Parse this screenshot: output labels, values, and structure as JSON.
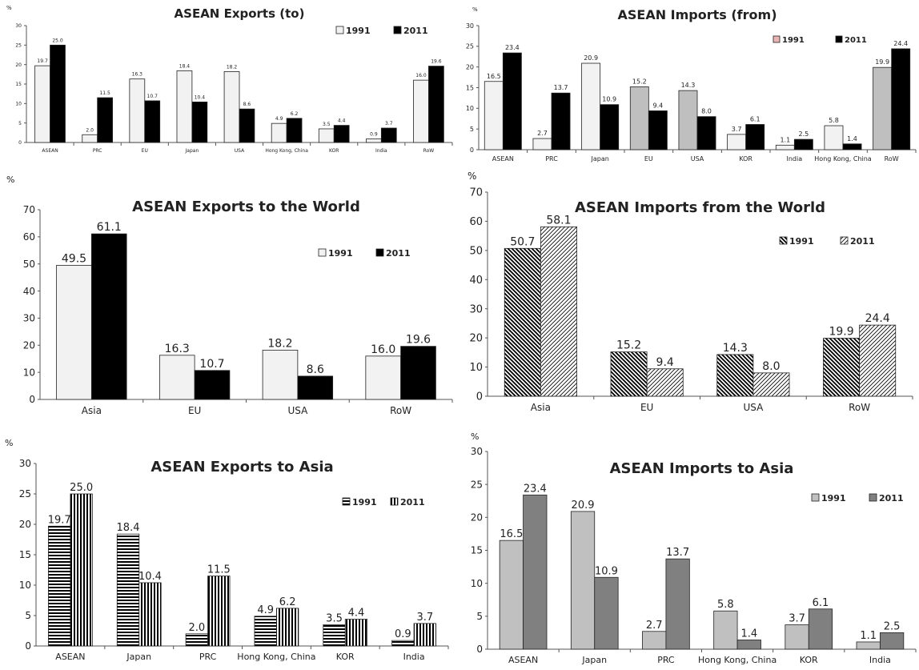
{
  "chart_data": [
    {
      "type": "bar",
      "title": "ASEAN Exports (to)",
      "ylabel": "%",
      "ylim": [
        0,
        30
      ],
      "yticks": [
        0,
        5,
        10,
        15,
        20,
        25,
        30
      ],
      "categories": [
        "ASEAN",
        "PRC",
        "EU",
        "Japan",
        "USA",
        "Hong Kong, China",
        "KOR",
        "India",
        "RoW"
      ],
      "series": [
        {
          "name": "1991",
          "values": [
            19.7,
            2.0,
            16.3,
            18.4,
            18.2,
            4.9,
            3.5,
            0.9,
            16.0
          ],
          "labels": [
            "19.7",
            "2.0",
            "16.3",
            "18.4",
            "18.2",
            "4.9",
            "3.5",
            "0.9",
            "16.0"
          ],
          "color": "#f2f2f2",
          "pattern": "solid"
        },
        {
          "name": "2011",
          "values": [
            25.0,
            11.5,
            10.7,
            10.4,
            8.6,
            6.2,
            4.4,
            3.7,
            19.6
          ],
          "labels": [
            "25.0",
            "11.5",
            "10.7",
            "10.4",
            "8.6",
            "6.2",
            "4.4",
            "3.7",
            "19.6"
          ],
          "color": "#000000",
          "pattern": "solid"
        }
      ],
      "legend": "top-right",
      "grid": false
    },
    {
      "type": "bar",
      "title": "ASEAN Imports (from)",
      "ylabel": "%",
      "ylim": [
        0,
        30
      ],
      "yticks": [
        0,
        5,
        10,
        15,
        20,
        25,
        30
      ],
      "categories": [
        "ASEAN",
        "PRC",
        "Japan",
        "EU",
        "USA",
        "KOR",
        "India",
        "Hong Kong, China",
        "RoW"
      ],
      "series": [
        {
          "name": "1991",
          "values": [
            16.5,
            2.7,
            20.9,
            15.2,
            14.3,
            3.7,
            1.1,
            5.8,
            19.9
          ],
          "labels": [
            "16.5",
            "2.7",
            "20.9",
            "15.2",
            "14.3",
            "3.7",
            "1.1",
            "5.8",
            "19.9"
          ],
          "color": "#f2f2f2",
          "pattern": "solid",
          "legend_color": "#e8b4b4",
          "alt_color": "#bfbfbf",
          "alt_indices": [
            3,
            4,
            8
          ]
        },
        {
          "name": "2011",
          "values": [
            23.4,
            13.7,
            10.9,
            9.4,
            8.0,
            6.1,
            2.5,
            1.4,
            24.4
          ],
          "labels": [
            "23.4",
            "13.7",
            "10.9",
            "9.4",
            "8.0",
            "6.1",
            "2.5",
            "1.4",
            "24.4"
          ],
          "color": "#000000",
          "pattern": "solid"
        }
      ],
      "legend": "top-right",
      "grid": false
    },
    {
      "type": "bar",
      "title": "ASEAN Exports to the World",
      "ylabel": "%",
      "ylim": [
        0,
        70
      ],
      "yticks": [
        0,
        10,
        20,
        30,
        40,
        50,
        60,
        70
      ],
      "categories": [
        "Asia",
        "EU",
        "USA",
        "RoW"
      ],
      "series": [
        {
          "name": "1991",
          "values": [
            49.5,
            16.3,
            18.2,
            16.0
          ],
          "labels": [
            "49.5",
            "16.3",
            "18.2",
            "16.0"
          ],
          "color": "#f2f2f2",
          "pattern": "solid"
        },
        {
          "name": "2011",
          "values": [
            61.1,
            10.7,
            8.6,
            19.6
          ],
          "labels": [
            "61.1",
            "10.7",
            "8.6",
            "19.6"
          ],
          "color": "#000000",
          "pattern": "solid"
        }
      ],
      "legend": "right",
      "grid": false
    },
    {
      "type": "bar",
      "title": "ASEAN Imports from the World",
      "ylabel": "%",
      "ylim": [
        0,
        70
      ],
      "yticks": [
        0,
        10,
        20,
        30,
        40,
        50,
        60,
        70
      ],
      "categories": [
        "Asia",
        "EU",
        "USA",
        "RoW"
      ],
      "series": [
        {
          "name": "1991",
          "values": [
            50.7,
            15.2,
            14.3,
            19.9
          ],
          "labels": [
            "50.7",
            "15.2",
            "14.3",
            "19.9"
          ],
          "color": "#000000",
          "pattern": "hatch-back-dense"
        },
        {
          "name": "2011",
          "values": [
            58.1,
            9.4,
            8.0,
            24.4
          ],
          "labels": [
            "58.1",
            "9.4",
            "8.0",
            "24.4"
          ],
          "color": "#000000",
          "pattern": "hatch-fwd-light"
        }
      ],
      "legend": "right",
      "grid": false
    },
    {
      "type": "bar",
      "title": "ASEAN Exports to Asia",
      "ylabel": "%",
      "ylim": [
        0,
        30
      ],
      "yticks": [
        0,
        5,
        10,
        15,
        20,
        25,
        30
      ],
      "categories": [
        "ASEAN",
        "Japan",
        "PRC",
        "Hong Kong, China",
        "KOR",
        "India"
      ],
      "series": [
        {
          "name": "1991",
          "values": [
            19.7,
            18.4,
            2.0,
            4.9,
            3.5,
            0.9
          ],
          "labels": [
            "19.7",
            "18.4",
            "2.0",
            "4.9",
            "3.5",
            "0.9"
          ],
          "color": "#000000",
          "pattern": "horizontal"
        },
        {
          "name": "2011",
          "values": [
            25.0,
            10.4,
            11.5,
            6.2,
            4.4,
            3.7
          ],
          "labels": [
            "25.0",
            "10.4",
            "11.5",
            "6.2",
            "4.4",
            "3.7"
          ],
          "color": "#000000",
          "pattern": "vertical"
        }
      ],
      "legend": "right",
      "grid": false
    },
    {
      "type": "bar",
      "title": "ASEAN Imports to Asia",
      "ylabel": "%",
      "ylim": [
        0,
        30
      ],
      "yticks": [
        0,
        5,
        10,
        15,
        20,
        25,
        30
      ],
      "categories": [
        "ASEAN",
        "Japan",
        "PRC",
        "Hong Kong, China",
        "KOR",
        "India"
      ],
      "series": [
        {
          "name": "1991",
          "values": [
            16.5,
            20.9,
            2.7,
            5.8,
            3.7,
            1.1
          ],
          "labels": [
            "16.5",
            "20.9",
            "2.7",
            "5.8",
            "3.7",
            "1.1"
          ],
          "color": "#c0c0c0",
          "pattern": "solid"
        },
        {
          "name": "2011",
          "values": [
            23.4,
            10.9,
            13.7,
            1.4,
            6.1,
            2.5
          ],
          "labels": [
            "23.4",
            "10.9",
            "13.7",
            "1.4",
            "6.1",
            "2.5"
          ],
          "color": "#808080",
          "pattern": "solid"
        }
      ],
      "legend": "top-right",
      "grid": false
    }
  ]
}
